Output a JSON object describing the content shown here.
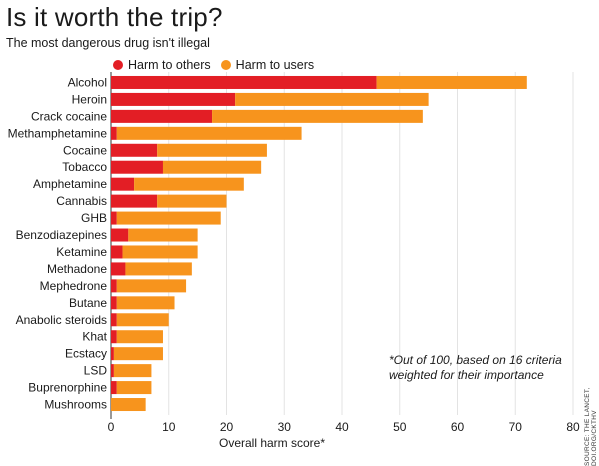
{
  "header": {
    "title": "Is it worth the trip?",
    "subtitle": "The most dangerous drug isn't illegal"
  },
  "legend": {
    "items": [
      {
        "label": "Harm to others",
        "color": "#e31e25"
      },
      {
        "label": "Harm to users",
        "color": "#f7941d"
      }
    ]
  },
  "note": "*Out of 100, based on 16 criteria weighted for their importance",
  "source": "SOURCE: THE LANCET, DOI.ORG/CKTHV",
  "chart_data": {
    "type": "bar",
    "orientation": "horizontal",
    "stacked": true,
    "title": "Is it worth the trip?",
    "subtitle": "The most dangerous drug isn't illegal",
    "xlabel": "Overall harm score*",
    "xlim": [
      0,
      80
    ],
    "xticks": [
      0,
      10,
      20,
      30,
      40,
      50,
      60,
      70,
      80
    ],
    "grid": "vertical",
    "legend_position": "top",
    "categories": [
      "Alcohol",
      "Heroin",
      "Crack cocaine",
      "Methamphetamine",
      "Cocaine",
      "Tobacco",
      "Amphetamine",
      "Cannabis",
      "GHB",
      "Benzodiazepines",
      "Ketamine",
      "Methadone",
      "Mephedrone",
      "Butane",
      "Anabolic steroids",
      "Khat",
      "Ecstacy",
      "LSD",
      "Buprenorphine",
      "Mushrooms"
    ],
    "series": [
      {
        "name": "Harm to others",
        "color": "#e31e25",
        "values": [
          46,
          21.5,
          17.5,
          1,
          8,
          9,
          4,
          8,
          1,
          3,
          2,
          2.5,
          1,
          1,
          1,
          1,
          0.5,
          0.5,
          1,
          0
        ]
      },
      {
        "name": "Harm to users",
        "color": "#f7941d",
        "values": [
          26,
          33.5,
          36.5,
          32,
          19,
          17,
          19,
          12,
          18,
          12,
          13,
          11.5,
          12,
          10,
          9,
          8,
          8.5,
          6.5,
          6,
          6
        ]
      }
    ]
  }
}
